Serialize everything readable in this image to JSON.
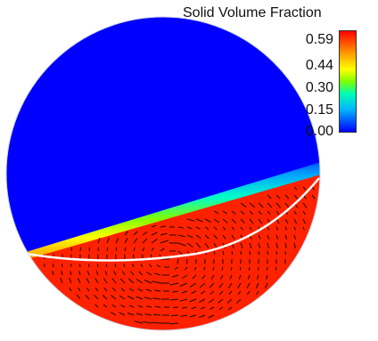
{
  "legend": {
    "title": "Solid Volume Fraction",
    "ticks": [
      "0.59",
      "0.44",
      "0.30",
      "0.15",
      "0.00"
    ]
  },
  "chart_data": {
    "type": "heatmap",
    "title": "",
    "xlabel": "",
    "ylabel": "",
    "colorbar": {
      "label": "Solid Volume Fraction",
      "min": 0.0,
      "max": 0.59,
      "ticks": [
        0.0,
        0.15,
        0.3,
        0.44,
        0.59
      ]
    },
    "regions": [
      {
        "name": "upper-region",
        "value": 0.0
      },
      {
        "name": "interface-band",
        "value": 0.3
      },
      {
        "name": "lower-bed",
        "value": 0.59
      }
    ],
    "annotations": [
      "velocity vectors in lower bed",
      "white curve near bed surface"
    ]
  },
  "colors": {
    "low": "#0000ff",
    "high": "#ff2200"
  }
}
